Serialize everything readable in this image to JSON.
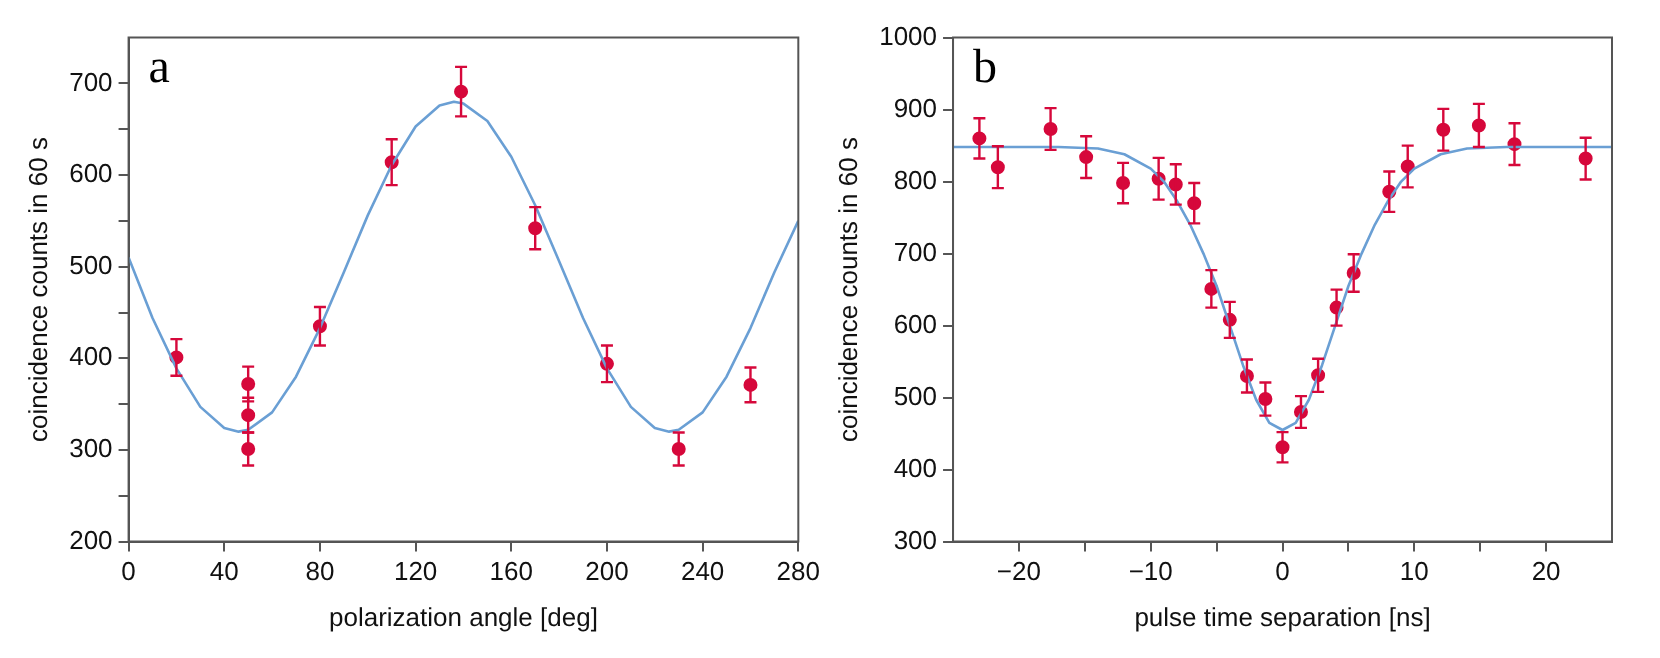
{
  "chart_data": [
    {
      "type": "scatter",
      "title": "a",
      "xlabel": "polarization angle [deg]",
      "ylabel": "coincidence counts in 60 s",
      "xlim": [
        0,
        280
      ],
      "xticks": [
        0,
        40,
        80,
        120,
        160,
        200,
        240,
        280
      ],
      "ylim": [
        200,
        750
      ],
      "yticks": [
        200,
        {
          "value": 250,
          "label": null
        },
        300,
        {
          "value": 350,
          "label": null
        },
        400,
        {
          "value": 450,
          "label": null
        },
        500,
        {
          "value": 550,
          "label": null
        },
        600,
        {
          "value": 650,
          "label": null
        },
        700
      ],
      "grid": false,
      "legend": false,
      "series": [
        {
          "type": "line",
          "marker": "none",
          "color": "#6a9fd4",
          "x": [
            0,
            10,
            20,
            30,
            40,
            46,
            50,
            60,
            70,
            80,
            90,
            100,
            110,
            120,
            130,
            136,
            140,
            150,
            160,
            170,
            180,
            190,
            200,
            210,
            220,
            226,
            230,
            240,
            250,
            260,
            270,
            280
          ],
          "values": [
            510,
            444,
            389,
            347,
            324,
            320,
            322,
            341,
            380,
            433,
            494,
            556,
            611,
            653,
            676,
            680,
            678,
            659,
            620,
            567,
            506,
            444,
            389,
            347,
            324,
            320,
            322,
            341,
            380,
            433,
            494,
            550
          ]
        },
        {
          "marker": "circle",
          "color": "#d6083b",
          "x": [
            20,
            50,
            50,
            50,
            80,
            110,
            139,
            170,
            200,
            230,
            260
          ],
          "values": [
            401,
            372,
            338,
            301,
            435,
            614,
            691,
            542,
            394,
            301,
            371
          ],
          "errors": [
            20,
            19,
            19,
            18,
            21,
            25,
            27,
            23,
            20,
            18,
            19
          ]
        }
      ]
    },
    {
      "type": "scatter",
      "title": "b",
      "xlabel": "pulse time separation [ns]",
      "ylabel": "coincidence counts in 60 s",
      "xlim": [
        -25,
        25
      ],
      "xticks": [
        {
          "value": -20,
          "label": "−20"
        },
        {
          "value": -15,
          "label": null
        },
        {
          "value": -10,
          "label": "−10"
        },
        {
          "value": -5,
          "label": null
        },
        0,
        {
          "value": 5,
          "label": null
        },
        10,
        {
          "value": 15,
          "label": null
        },
        20
      ],
      "ylim": [
        300,
        1000
      ],
      "yticks": [
        300,
        400,
        500,
        600,
        700,
        800,
        900,
        1000
      ],
      "grid": false,
      "legend": false,
      "series": [
        {
          "type": "line",
          "marker": "none",
          "color": "#6a9fd4",
          "x": [
            -25,
            -17,
            -14,
            -12,
            -10,
            -9,
            -8,
            -7,
            -6,
            -5,
            -4,
            -3,
            -2,
            -1,
            0,
            1,
            2,
            3,
            4,
            5,
            6,
            7,
            8,
            9,
            10,
            12,
            14,
            17,
            25
          ],
          "values": [
            848,
            848,
            846,
            838,
            818,
            800,
            773,
            740,
            700,
            655,
            600,
            545,
            497,
            465,
            455,
            465,
            497,
            545,
            600,
            655,
            700,
            740,
            773,
            800,
            818,
            838,
            846,
            848,
            848
          ]
        },
        {
          "marker": "circle",
          "color": "#d6083b",
          "x": [
            -23,
            -21.6,
            -17.6,
            -14.9,
            -12.1,
            -9.4,
            -8.1,
            -6.7,
            -5.4,
            -4,
            -2.7,
            -1.3,
            0,
            1.4,
            2.7,
            4.1,
            5.4,
            8.1,
            9.5,
            12.2,
            14.9,
            17.6,
            23
          ],
          "values": [
            860,
            820,
            873,
            834,
            798,
            804,
            796,
            770,
            651,
            608,
            530,
            498,
            431,
            480,
            531,
            625,
            673,
            786,
            821,
            872,
            878,
            852,
            832
          ],
          "errors": [
            28,
            29,
            29,
            29,
            28,
            29,
            28,
            28,
            26,
            25,
            23,
            23,
            21,
            22,
            23,
            25,
            26,
            28,
            29,
            29,
            30,
            29,
            29
          ]
        }
      ]
    }
  ]
}
